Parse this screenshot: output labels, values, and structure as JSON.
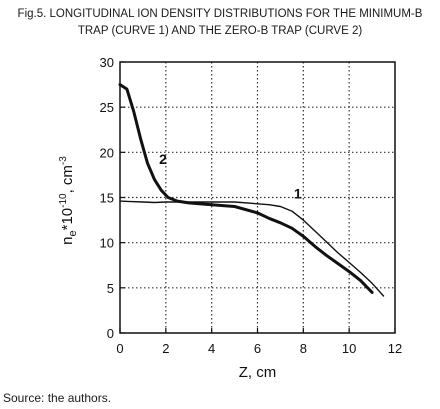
{
  "figure": {
    "caption_line1": "Fig.5. LONGITUDINAL ION DENSITY DISTRIBUTIONS FOR THE MINIMUM-B",
    "caption_line2": "TRAP (CURVE 1) AND THE ZERO-B TRAP (CURVE 2)",
    "source": "Source: the authors."
  },
  "chart_data": {
    "type": "line",
    "title": "",
    "xlabel": "Z, cm",
    "ylabel_main": "n",
    "ylabel_sub": "e",
    "ylabel_rest": "*10",
    "ylabel_exp": "-10",
    "ylabel_unit": ", cm",
    "ylabel_unit_exp": "-3",
    "xlim": [
      0,
      12
    ],
    "ylim": [
      0,
      30
    ],
    "xticks": [
      0,
      2,
      4,
      6,
      8,
      10,
      12
    ],
    "yticks": [
      0,
      5,
      10,
      15,
      20,
      25,
      30
    ],
    "grid": true,
    "series": [
      {
        "name": "1",
        "x": [
          0,
          0.5,
          1,
          1.5,
          2,
          2.5,
          3,
          4,
          5,
          6,
          6.5,
          7,
          7.5,
          8,
          8.5,
          9,
          9.5,
          10,
          10.5,
          11,
          11.5
        ],
        "y": [
          14.6,
          14.55,
          14.5,
          14.45,
          14.5,
          14.5,
          14.5,
          14.5,
          14.5,
          14.3,
          14.2,
          14.0,
          13.5,
          12.5,
          11.3,
          10.1,
          8.9,
          7.8,
          6.7,
          5.5,
          4.1
        ]
      },
      {
        "name": "2",
        "x": [
          0,
          0.3,
          0.6,
          0.9,
          1.2,
          1.5,
          1.8,
          2.1,
          2.5,
          3,
          4,
          5,
          6,
          6.5,
          7,
          7.5,
          8,
          8.5,
          9,
          9.5,
          10,
          10.5,
          11
        ],
        "y": [
          27.5,
          27.0,
          24.5,
          21.5,
          18.8,
          17.0,
          15.8,
          15.0,
          14.6,
          14.4,
          14.2,
          14.0,
          13.3,
          12.7,
          12.2,
          11.6,
          10.7,
          9.6,
          8.6,
          7.7,
          6.8,
          5.8,
          4.5
        ]
      }
    ]
  }
}
